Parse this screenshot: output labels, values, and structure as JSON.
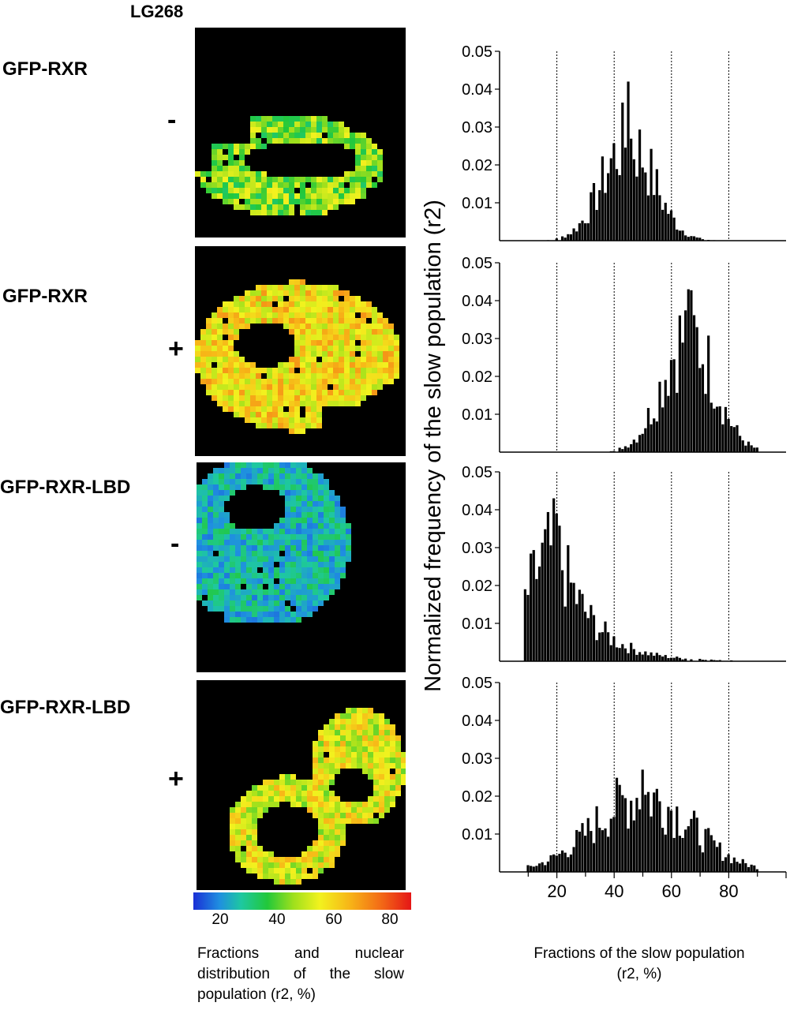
{
  "figure": {
    "ligand_label": "LG268",
    "conditions": [
      {
        "construct": "GFP-RXR",
        "ligand": "-"
      },
      {
        "construct": "GFP-RXR",
        "ligand": "+"
      },
      {
        "construct": "GFP-RXR-LBD",
        "ligand": "-"
      },
      {
        "construct": "GFP-RXR-LBD",
        "ligand": "+"
      }
    ],
    "colorbar": {
      "ticks": [
        "20",
        "40",
        "60",
        "80"
      ],
      "colors": [
        "#1a2fd6",
        "#22c83a",
        "#f2f21e",
        "#e51616"
      ]
    },
    "left_caption": "Fractions and nuclear distribution of the slow population (r2, %)",
    "right_caption_line1": "Fractions of the slow population",
    "right_caption_line2": "(r2, %)"
  },
  "chart_data": {
    "type": "bar",
    "ylabel": "Normalized frequency of the slow population (r2)",
    "xlabel": "Fractions of the slow population (r2, %)",
    "xlim": [
      0,
      100
    ],
    "ylim": [
      0,
      0.05
    ],
    "yticks": [
      "0.01",
      "0.02",
      "0.03",
      "0.04",
      "0.05"
    ],
    "xticks": [
      "20",
      "40",
      "60",
      "80"
    ],
    "reference_lines_x": [
      20,
      40,
      60,
      80
    ],
    "panels": [
      {
        "label": "GFP-RXR -",
        "peak_x": 45,
        "peak_y": 0.042,
        "spread": 9,
        "x_range": [
          16,
          86
        ],
        "amplitude": 0.026
      },
      {
        "label": "GFP-RXR +",
        "peak_x": 66,
        "peak_y": 0.043,
        "spread": 9,
        "x_range": [
          30,
          90
        ],
        "amplitude": 0.031
      },
      {
        "label": "GFP-RXR-LBD -",
        "peak_x": 20,
        "peak_y": 0.039,
        "spread": 10,
        "x_range": [
          9,
          90
        ],
        "amplitude": 0.03
      },
      {
        "label": "GFP-RXR-LBD +",
        "peak_x": 50,
        "peak_y": 0.027,
        "spread": 17,
        "x_range": [
          10,
          90
        ],
        "amplitude": 0.02
      }
    ]
  }
}
